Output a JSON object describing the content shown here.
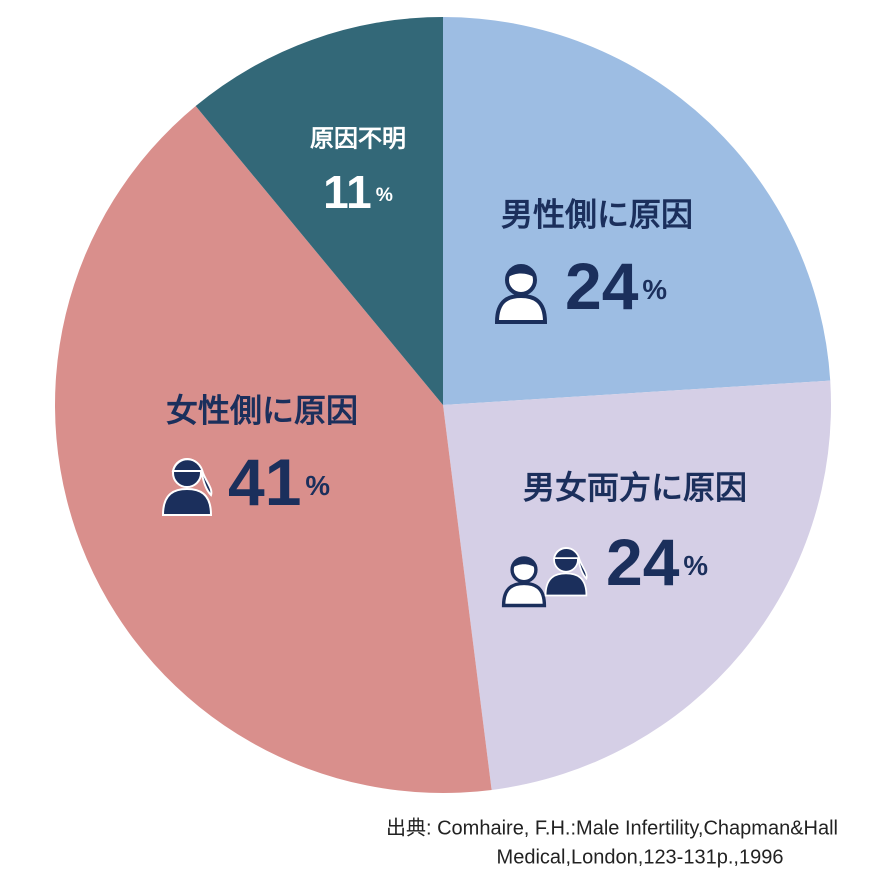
{
  "chart_data": {
    "type": "pie",
    "categories": [
      "男性側に原因",
      "男女両方に原因",
      "女性側に原因",
      "原因不明"
    ],
    "values": [
      24,
      24,
      41,
      11
    ],
    "value_labels": [
      "24%",
      "24%",
      "41%",
      "11%"
    ],
    "colors": [
      "#9dbde3",
      "#d5cfe6",
      "#d98f8c",
      "#336878"
    ],
    "source": [
      "出典: Comhaire, F.H.:Male Infertility,Chapman&Hall",
      "Medical,London,123-131p.,1996"
    ]
  }
}
